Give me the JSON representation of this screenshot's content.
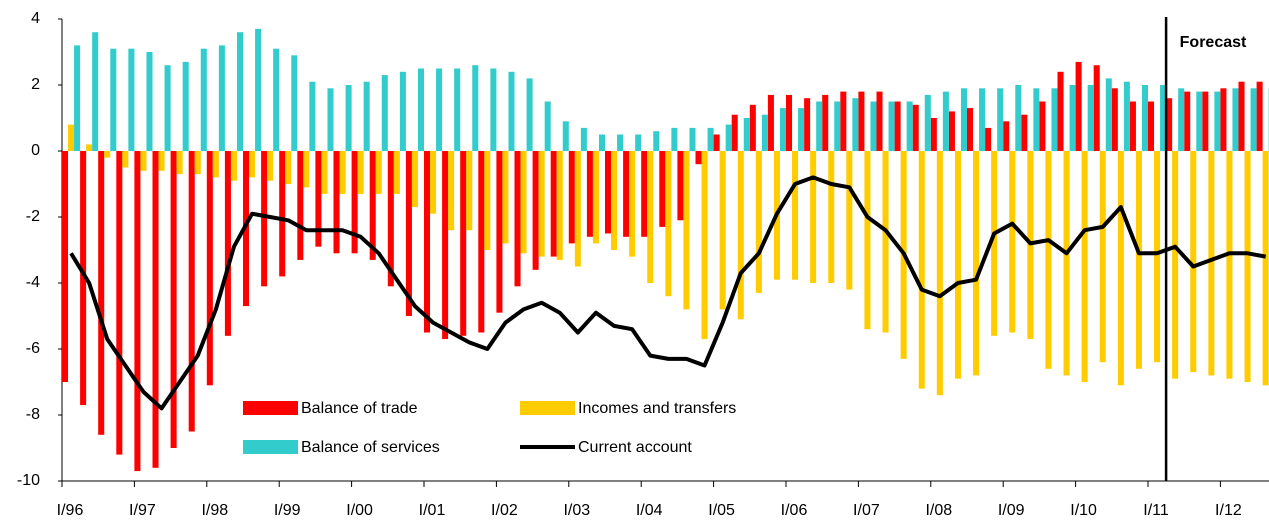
{
  "chart_data": {
    "type": "bar-line",
    "categories": [
      "I/96",
      null,
      null,
      null,
      "I/97",
      null,
      null,
      null,
      "I/98",
      null,
      null,
      null,
      "I/99",
      null,
      null,
      null,
      "I/00",
      null,
      null,
      null,
      "I/01",
      null,
      null,
      null,
      "I/02",
      null,
      null,
      null,
      "I/03",
      null,
      null,
      null,
      "I/04",
      null,
      null,
      null,
      "I/05",
      null,
      null,
      null,
      "I/06",
      null,
      null,
      null,
      "I/07",
      null,
      null,
      null,
      "I/08",
      null,
      null,
      null,
      "I/09",
      null,
      null,
      null,
      "I/10",
      null,
      null,
      null,
      "I/11",
      null,
      null,
      null,
      "I/12",
      null,
      null
    ],
    "series": [
      {
        "name": "Balance of trade",
        "type": "bar",
        "color": "#ff0000",
        "values": [
          -7.0,
          -7.7,
          -8.6,
          -9.2,
          -9.7,
          -9.6,
          -9.0,
          -8.5,
          -7.1,
          -5.6,
          -4.7,
          -4.1,
          -3.8,
          -3.3,
          -2.9,
          -3.1,
          -3.1,
          -3.3,
          -4.1,
          -5.0,
          -5.5,
          -5.7,
          -5.6,
          -5.5,
          -4.9,
          -4.1,
          -3.6,
          -3.2,
          -2.8,
          -2.6,
          -2.5,
          -2.6,
          -2.6,
          -2.3,
          -2.1,
          -0.4,
          0.5,
          1.1,
          1.4,
          1.7,
          1.7,
          1.6,
          1.7,
          1.8,
          1.8,
          1.8,
          1.5,
          1.4,
          1.0,
          1.2,
          1.3,
          0.7,
          0.9,
          1.1,
          1.5,
          2.4,
          2.7,
          2.6,
          1.9,
          1.5,
          1.5,
          1.6,
          1.8,
          1.8,
          1.9,
          2.1,
          2.1
        ]
      },
      {
        "name": "Incomes and transfers",
        "type": "bar",
        "color": "#ffcc00",
        "values": [
          0.8,
          0.2,
          -0.2,
          -0.5,
          -0.6,
          -0.6,
          -0.7,
          -0.7,
          -0.8,
          -0.9,
          -0.8,
          -0.9,
          -1.0,
          -1.1,
          -1.3,
          -1.3,
          -1.3,
          -1.3,
          -1.3,
          -1.7,
          -1.9,
          -2.4,
          -2.4,
          -3.0,
          -2.8,
          -3.1,
          -3.2,
          -3.3,
          -3.5,
          -2.8,
          -3.0,
          -3.2,
          -4.0,
          -4.4,
          -4.8,
          -5.7,
          -4.8,
          -5.1,
          -4.3,
          -3.9,
          -3.9,
          -4.0,
          -4.0,
          -4.2,
          -5.4,
          -5.5,
          -6.3,
          -7.2,
          -7.4,
          -6.9,
          -6.8,
          -5.6,
          -5.5,
          -5.7,
          -6.6,
          -6.8,
          -7.0,
          -6.4,
          -7.1,
          -6.6,
          -6.4,
          -6.9,
          -6.7,
          -6.8,
          -6.9,
          -7.0,
          -7.1
        ]
      },
      {
        "name": "Balance of services",
        "type": "bar",
        "color": "#33cccc",
        "values": [
          3.2,
          3.6,
          3.1,
          3.1,
          3.0,
          2.6,
          2.7,
          3.1,
          3.2,
          3.6,
          3.7,
          3.1,
          2.9,
          2.1,
          1.9,
          2.0,
          2.1,
          2.3,
          2.4,
          2.5,
          2.5,
          2.5,
          2.6,
          2.5,
          2.4,
          2.2,
          1.5,
          0.9,
          0.7,
          0.5,
          0.5,
          0.5,
          0.6,
          0.7,
          0.7,
          0.7,
          0.8,
          1.0,
          1.1,
          1.3,
          1.3,
          1.5,
          1.5,
          1.6,
          1.5,
          1.5,
          1.5,
          1.7,
          1.8,
          1.9,
          1.9,
          1.9,
          2.0,
          1.9,
          1.9,
          2.0,
          2.0,
          2.2,
          2.1,
          2.0,
          2.0,
          1.9,
          1.8,
          1.8,
          1.9,
          1.9,
          1.9
        ]
      },
      {
        "name": "Current account",
        "type": "line",
        "color": "#000000",
        "values": [
          -3.1,
          -4.0,
          -5.7,
          -6.5,
          -7.3,
          -7.8,
          -7.0,
          -6.2,
          -4.8,
          -2.9,
          -1.9,
          -2.0,
          -2.1,
          -2.4,
          -2.4,
          -2.4,
          -2.6,
          -3.1,
          -3.9,
          -4.7,
          -5.2,
          -5.5,
          -5.8,
          -6.0,
          -5.2,
          -4.8,
          -4.6,
          -4.9,
          -5.5,
          -4.9,
          -5.3,
          -5.4,
          -6.2,
          -6.3,
          -6.3,
          -6.5,
          -5.2,
          -3.7,
          -3.1,
          -1.9,
          -1.0,
          -0.8,
          -1.0,
          -1.1,
          -2.0,
          -2.4,
          -3.1,
          -4.2,
          -4.4,
          -4.0,
          -3.9,
          -2.5,
          -2.2,
          -2.8,
          -2.7,
          -3.1,
          -2.4,
          -2.3,
          -1.7,
          -3.1,
          -3.1,
          -2.9,
          -3.5,
          -3.3,
          -3.1,
          -3.1,
          -3.2
        ]
      }
    ],
    "ylim": [
      -10,
      4
    ],
    "yticks": [
      -10,
      -8,
      -6,
      -4,
      -2,
      0,
      2,
      4
    ],
    "forecast": {
      "label": "Forecast",
      "category_index": 61
    },
    "legend": "lower left",
    "grid": false
  }
}
